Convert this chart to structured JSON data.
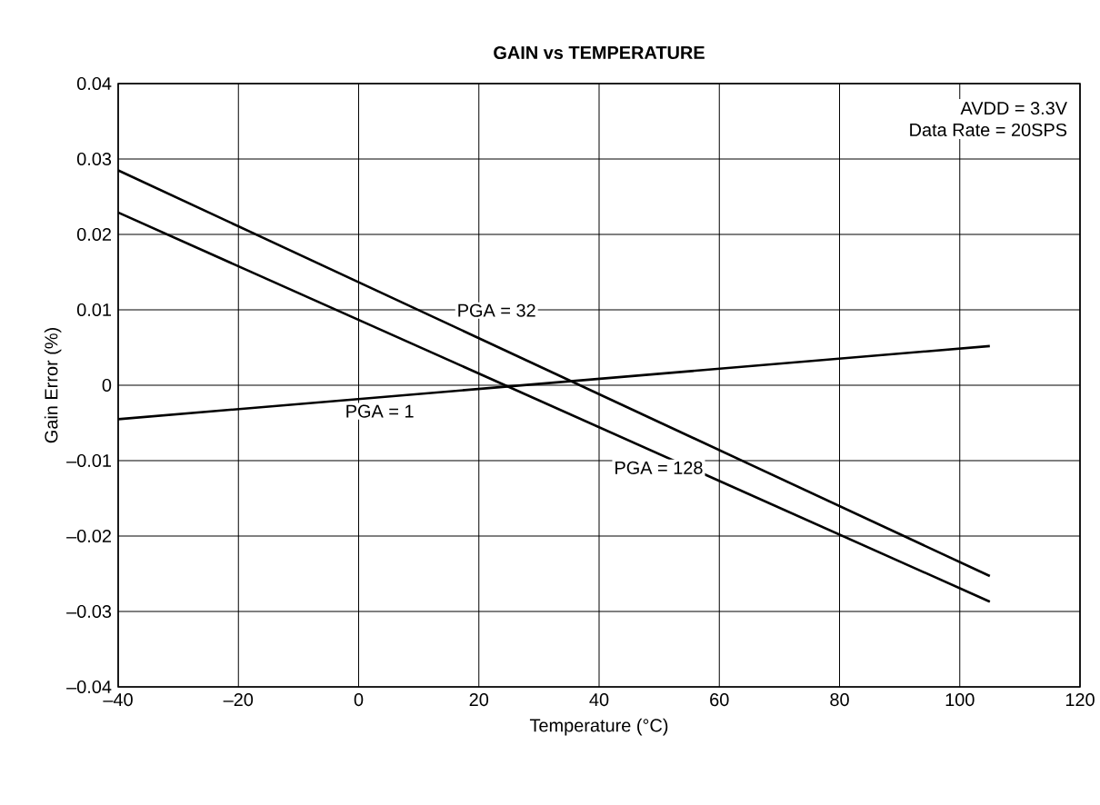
{
  "chart_data": {
    "type": "line",
    "title": "GAIN vs TEMPERATURE",
    "xlabel": "Temperature (°C)",
    "ylabel": "Gain Error (%)",
    "xlim": [
      -40,
      120
    ],
    "xticks": [
      {
        "value": -40,
        "label": "–40"
      },
      {
        "value": -20,
        "label": "–20"
      },
      0,
      20,
      40,
      60,
      80,
      100,
      120
    ],
    "ylim": [
      -0.04,
      0.04
    ],
    "yticks": [
      {
        "value": -0.04,
        "label": "–0.04"
      },
      {
        "value": -0.03,
        "label": "–0.03"
      },
      {
        "value": -0.02,
        "label": "–0.02"
      },
      {
        "value": -0.01,
        "label": "–0.01"
      },
      0,
      0.01,
      0.02,
      0.03,
      0.04
    ],
    "grid": true,
    "marker": "none",
    "line_style": "solid",
    "annotations": [
      "AVDD = 3.3V",
      "Data Rate = 20SPS"
    ],
    "x": [
      -40,
      105
    ],
    "series": [
      {
        "name": "PGA = 1",
        "color": "#000000",
        "values": [
          -0.0045,
          0.0052
        ]
      },
      {
        "name": "PGA = 32",
        "color": "#000000",
        "values": [
          0.0285,
          -0.0253
        ]
      },
      {
        "name": "PGA = 128",
        "color": "#000000",
        "values": [
          0.0229,
          -0.0287
        ]
      }
    ]
  }
}
